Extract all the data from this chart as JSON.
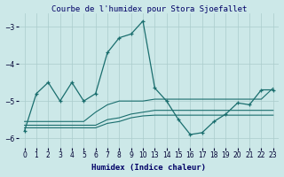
{
  "title": "Courbe de l'humidex pour Stora Sjoefallet",
  "xlabel": "Humidex (Indice chaleur)",
  "bg_color": "#cce8e8",
  "grid_color": "#aacccc",
  "line_color": "#1a6e6e",
  "x_main": [
    0,
    1,
    2,
    3,
    4,
    5,
    6,
    7,
    8,
    9,
    10,
    13,
    14,
    15,
    16,
    17,
    18,
    19,
    20,
    21,
    22,
    23
  ],
  "y_main": [
    -5.8,
    -4.8,
    -4.5,
    -5.0,
    -4.5,
    -5.0,
    -4.8,
    -3.7,
    -3.3,
    -3.2,
    -2.85,
    -4.65,
    -5.0,
    -5.5,
    -5.9,
    -5.85,
    -5.55,
    -5.35,
    -5.05,
    -5.1,
    -4.7,
    -4.7
  ],
  "x_flat1": [
    0,
    1,
    2,
    3,
    4,
    5,
    6,
    7,
    8,
    9,
    10,
    13,
    14,
    15,
    16,
    17,
    18,
    19,
    20,
    21,
    22,
    23
  ],
  "y_flat1": [
    -5.55,
    -5.55,
    -5.55,
    -5.55,
    -5.55,
    -5.55,
    -5.3,
    -5.1,
    -5.0,
    -5.0,
    -5.0,
    -4.95,
    -4.95,
    -4.95,
    -4.95,
    -4.95,
    -4.95,
    -4.95,
    -4.95,
    -4.95,
    -4.95,
    -4.65
  ],
  "x_flat2": [
    0,
    1,
    2,
    3,
    4,
    5,
    6,
    7,
    8,
    9,
    10,
    13,
    14,
    15,
    16,
    17,
    18,
    19,
    20,
    21,
    22,
    23
  ],
  "y_flat2": [
    -5.65,
    -5.65,
    -5.65,
    -5.65,
    -5.65,
    -5.65,
    -5.65,
    -5.5,
    -5.45,
    -5.35,
    -5.3,
    -5.25,
    -5.25,
    -5.25,
    -5.25,
    -5.25,
    -5.25,
    -5.25,
    -5.25,
    -5.25,
    -5.25,
    -5.25
  ],
  "x_flat3": [
    0,
    1,
    2,
    3,
    4,
    5,
    6,
    7,
    8,
    9,
    10,
    13,
    14,
    15,
    16,
    17,
    18,
    19,
    20,
    21,
    22,
    23
  ],
  "y_flat3": [
    -5.72,
    -5.72,
    -5.72,
    -5.72,
    -5.72,
    -5.72,
    -5.72,
    -5.6,
    -5.55,
    -5.45,
    -5.4,
    -5.38,
    -5.38,
    -5.38,
    -5.38,
    -5.38,
    -5.38,
    -5.38,
    -5.38,
    -5.38,
    -5.38,
    -5.38
  ],
  "ylim": [
    -6.25,
    -2.65
  ],
  "yticks": [
    -6,
    -5,
    -4,
    -3
  ],
  "xtick_labels": [
    "0",
    "1",
    "2",
    "3",
    "4",
    "5",
    "6",
    "7",
    "8",
    "9",
    "10",
    "13",
    "14",
    "15",
    "16",
    "17",
    "18",
    "19",
    "20",
    "21",
    "22",
    "23"
  ],
  "xtick_positions": [
    0,
    1,
    2,
    3,
    4,
    5,
    6,
    7,
    8,
    9,
    10,
    11,
    12,
    13,
    14,
    15,
    16,
    17,
    18,
    19,
    20,
    21
  ],
  "title_fontsize": 6.5,
  "tick_fontsize": 5.5,
  "label_fontsize": 6.5
}
